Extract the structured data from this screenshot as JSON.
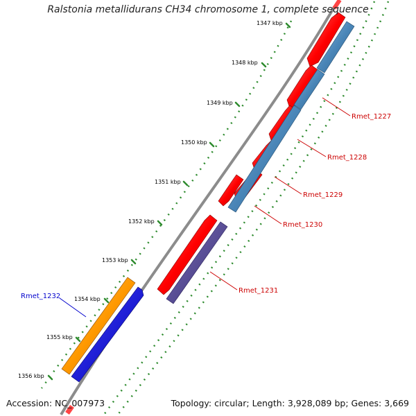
{
  "title": "Ralstonia metallidurans CH34 chromosome 1, complete sequence",
  "footer": {
    "accession": "Accession: NC_007973",
    "info": "Topology: circular; Length: 3,928,089 bp; Genes: 3,669"
  },
  "ticks": [
    "1347 kbp",
    "1348 kbp",
    "1349 kbp",
    "1350 kbp",
    "1351 kbp",
    "1352 kbp",
    "1353 kbp",
    "1354 kbp",
    "1355 kbp",
    "1356 kbp"
  ],
  "colors": {
    "forward_cds": "#ff0000",
    "reverse_cds": "#4a86b8",
    "reverse_cds_2": "#4b3f8c",
    "orange_feature": "#ff9900",
    "blue_feature": "#0000ee",
    "backbone": "#8c8c8c",
    "tick_green": "#2e8b2e",
    "label_red": "#cc0000",
    "label_blue": "#0000cc"
  },
  "genes": [
    {
      "name": "Rmet_1227",
      "color": "#cc0000"
    },
    {
      "name": "Rmet_1228",
      "color": "#cc0000"
    },
    {
      "name": "Rmet_1229",
      "color": "#cc0000"
    },
    {
      "name": "Rmet_1230",
      "color": "#cc0000"
    },
    {
      "name": "Rmet_1231",
      "color": "#cc0000"
    },
    {
      "name": "Rmet_1232",
      "color": "#0000cc"
    }
  ]
}
